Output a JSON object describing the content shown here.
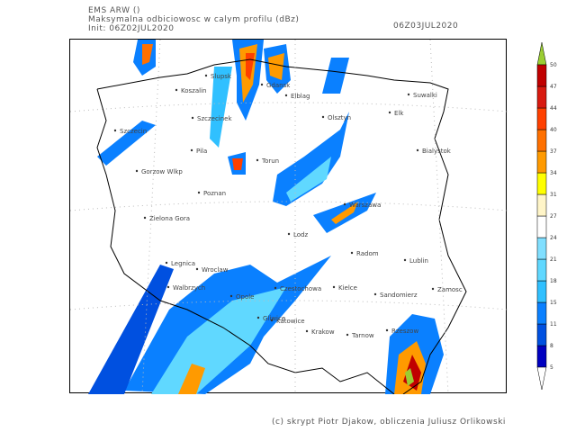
{
  "header": {
    "model": "EMS ARW ()",
    "title": "Maksymalna odbiciowosc w calym profilu (dBz)",
    "init": "Init: 06Z02JUL2020",
    "valid": "06Z03JUL2020"
  },
  "footer": "(c) skrypt Piotr Djakow, obliczenia Juliusz Orlikowski",
  "colorbar": {
    "unit": "dBz",
    "levels": [
      5,
      8,
      11,
      15,
      18,
      21,
      24,
      27,
      31,
      34,
      37,
      40,
      44,
      47,
      50
    ],
    "colors": [
      "#0000c0",
      "#0050e0",
      "#0a80ff",
      "#30c0ff",
      "#60d8ff",
      "#80dfff",
      "#ffffff",
      "#fff5c8",
      "#ffff00",
      "#ff9a00",
      "#ff7000",
      "#ff4000",
      "#d81a10",
      "#c00000"
    ],
    "over_color": "#9acd32",
    "under_color": "#ffffff"
  },
  "cities": [
    "Slupsk",
    "Koszalin",
    "Gdansk",
    "Elblag",
    "Olsztyn",
    "Elk",
    "Suwalki",
    "Szczecinek",
    "Szczecin",
    "Pila",
    "Torun",
    "Bialystok",
    "Gorzow Wlkp",
    "Poznan",
    "Zielona Gora",
    "Warszawa",
    "Lodz",
    "Radom",
    "Lublin",
    "Legnica",
    "Wroclaw",
    "Walbrzych",
    "Opole",
    "Czestochowa",
    "Kielce",
    "Sandomierz",
    "Zamosc",
    "Gliwice",
    "Katowice",
    "Krakow",
    "Tarnow",
    "Rzeszow"
  ]
}
